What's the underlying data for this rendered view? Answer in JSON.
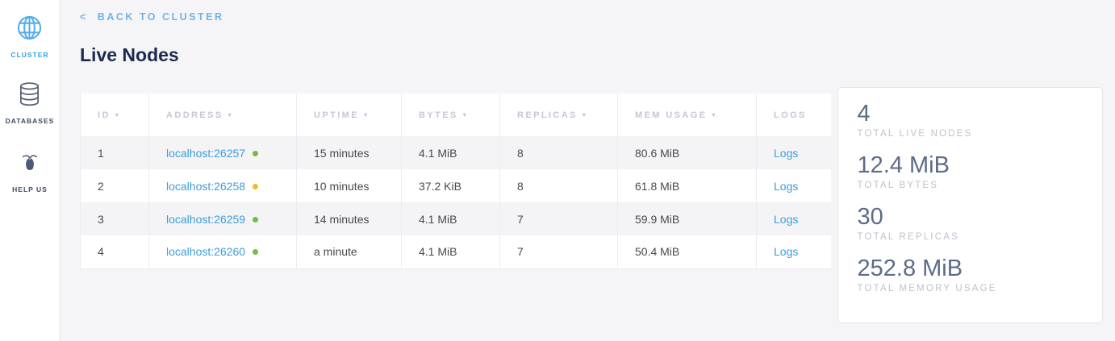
{
  "sidebar": {
    "items": [
      {
        "label": "CLUSTER",
        "icon": "globe-icon",
        "active": true
      },
      {
        "label": "DATABASES",
        "icon": "database-icon",
        "active": false
      },
      {
        "label": "HELP US",
        "icon": "cockroach-icon",
        "active": false
      }
    ]
  },
  "header": {
    "back_chevron": "<",
    "back_label": "BACK TO CLUSTER",
    "title": "Live Nodes"
  },
  "table": {
    "columns": [
      {
        "label": "ID",
        "sortable": true
      },
      {
        "label": "ADDRESS",
        "sortable": true
      },
      {
        "label": "UPTIME",
        "sortable": true
      },
      {
        "label": "BYTES",
        "sortable": true
      },
      {
        "label": "REPLICAS",
        "sortable": true
      },
      {
        "label": "MEM USAGE",
        "sortable": true
      },
      {
        "label": "LOGS",
        "sortable": false
      }
    ],
    "rows": [
      {
        "id": "1",
        "address": "localhost:26257",
        "status": "healthy",
        "uptime": "15 minutes",
        "bytes": "4.1 MiB",
        "replicas": "8",
        "mem_usage": "80.6 MiB",
        "logs_label": "Logs"
      },
      {
        "id": "2",
        "address": "localhost:26258",
        "status": "suspect",
        "uptime": "10 minutes",
        "bytes": "37.2 KiB",
        "replicas": "8",
        "mem_usage": "61.8 MiB",
        "logs_label": "Logs"
      },
      {
        "id": "3",
        "address": "localhost:26259",
        "status": "healthy",
        "uptime": "14 minutes",
        "bytes": "4.1 MiB",
        "replicas": "7",
        "mem_usage": "59.9 MiB",
        "logs_label": "Logs"
      },
      {
        "id": "4",
        "address": "localhost:26260",
        "status": "healthy",
        "uptime": "a minute",
        "bytes": "4.1 MiB",
        "replicas": "7",
        "mem_usage": "50.4 MiB",
        "logs_label": "Logs"
      }
    ]
  },
  "summary": {
    "stats": [
      {
        "value": "4",
        "label": "TOTAL LIVE NODES"
      },
      {
        "value": "12.4 MiB",
        "label": "TOTAL BYTES"
      },
      {
        "value": "30",
        "label": "TOTAL REPLICAS"
      },
      {
        "value": "252.8 MiB",
        "label": "TOTAL MEMORY USAGE"
      }
    ]
  },
  "colors": {
    "accent_blue": "#2fa3e5",
    "back_link_blue": "#6fb3e8",
    "link_blue": "#3e9cda",
    "title_navy": "#1b2a4e",
    "header_text_gray": "#c4c8d3",
    "panel_value_gray": "#5d6b86",
    "status_healthy": "#76bb3f",
    "status_suspect": "#eebe2a"
  }
}
